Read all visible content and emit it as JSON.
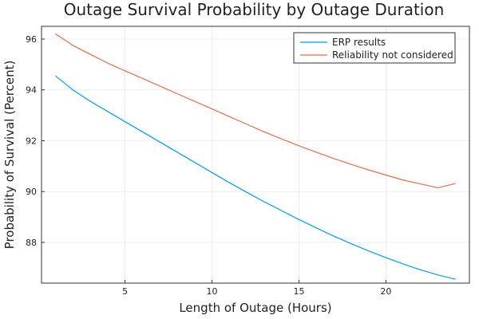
{
  "chart_data": {
    "type": "line",
    "title": "Outage Survival Probability by Outage Duration",
    "xlabel": "Length of Outage (Hours)",
    "ylabel": "Probability of Survival (Percent)",
    "xlim": [
      0.2,
      24.8
    ],
    "ylim": [
      86.4,
      96.5
    ],
    "xticks": [
      5,
      10,
      15,
      20
    ],
    "yticks": [
      88,
      90,
      92,
      94,
      96
    ],
    "grid": true,
    "legend_position": "top-right",
    "x": [
      1,
      2,
      3,
      4,
      5,
      6,
      7,
      8,
      9,
      10,
      11,
      12,
      13,
      14,
      15,
      16,
      17,
      18,
      19,
      20,
      21,
      22,
      23,
      24
    ],
    "series": [
      {
        "name": "ERP results",
        "color": "#009AFA",
        "values": [
          94.55,
          94.0,
          93.55,
          93.15,
          92.75,
          92.35,
          91.95,
          91.55,
          91.15,
          90.75,
          90.35,
          89.97,
          89.6,
          89.25,
          88.9,
          88.57,
          88.25,
          87.95,
          87.67,
          87.4,
          87.15,
          86.92,
          86.72,
          86.55
        ]
      },
      {
        "name": "Reliability not considered",
        "color": "#E26F46",
        "values": [
          96.2,
          95.75,
          95.4,
          95.05,
          94.75,
          94.45,
          94.15,
          93.85,
          93.55,
          93.25,
          92.95,
          92.65,
          92.35,
          92.07,
          91.8,
          91.55,
          91.3,
          91.07,
          90.85,
          90.65,
          90.45,
          90.3,
          90.15,
          90.32
        ]
      }
    ]
  }
}
